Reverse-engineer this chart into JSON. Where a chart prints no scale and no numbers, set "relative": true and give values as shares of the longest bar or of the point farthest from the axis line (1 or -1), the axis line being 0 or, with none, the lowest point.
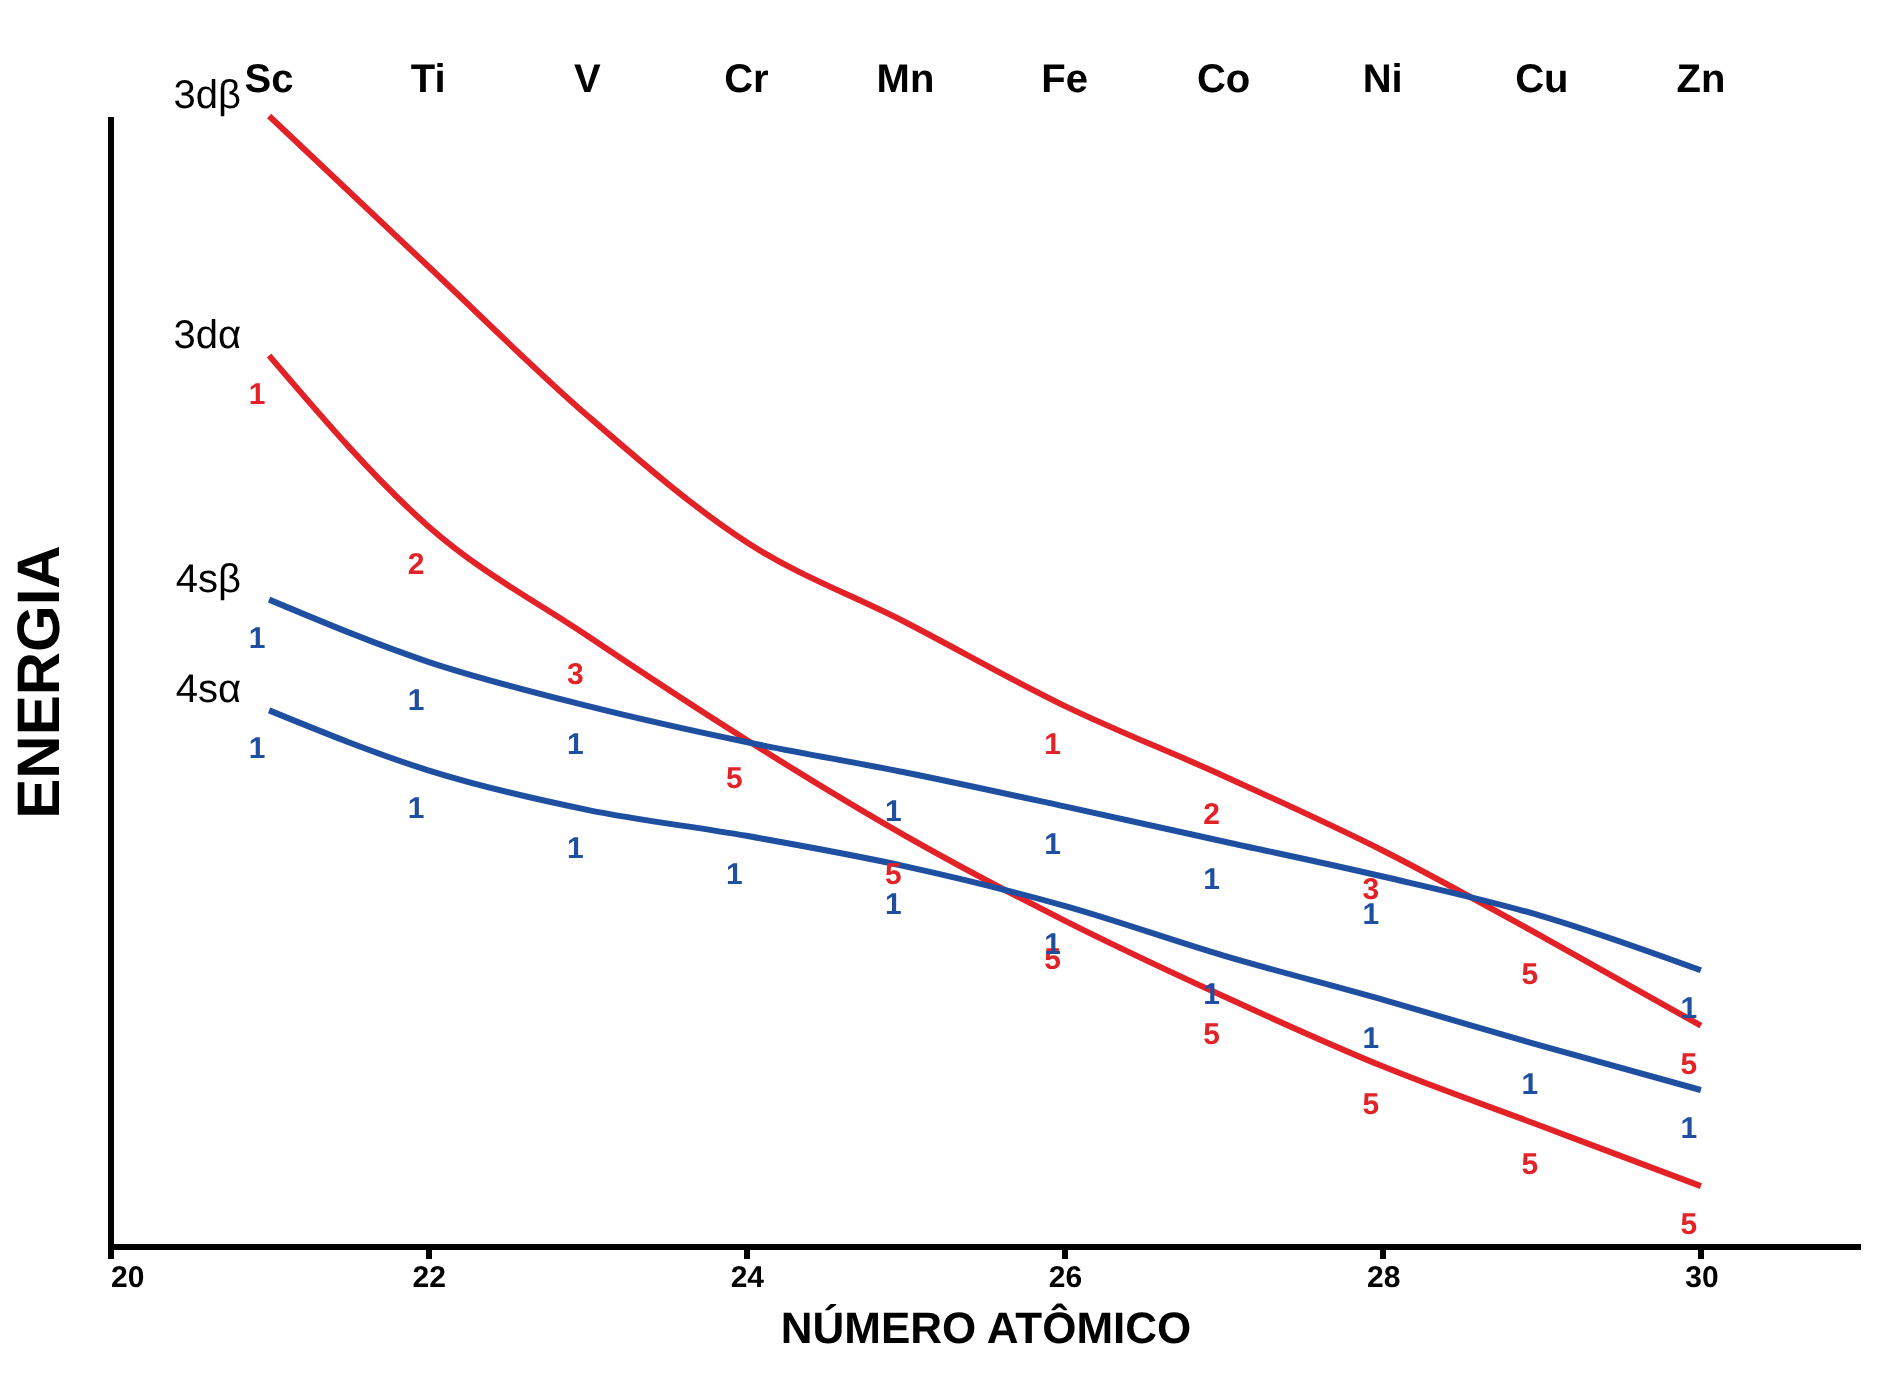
{
  "chart_data": {
    "type": "line",
    "relative": true,
    "xlabel": "NÚMERO ATÔMICO",
    "ylabel": "ENERGIA",
    "x": [
      21,
      22,
      23,
      24,
      25,
      26,
      27,
      28,
      29,
      30
    ],
    "xlim": [
      20,
      31
    ],
    "xticks": [
      20,
      22,
      24,
      26,
      28,
      30
    ],
    "grid": false,
    "legend": false,
    "marker": "none",
    "line_style": "solid",
    "series": [
      {
        "name": "3dβ",
        "color": "#e32228",
        "values": [
          1.0,
          0.867,
          0.735,
          0.623,
          0.552,
          0.478,
          0.416,
          0.35,
          0.274,
          0.195
        ]
      },
      {
        "name": "3dα",
        "color": "#e32228",
        "values": [
          0.788,
          0.637,
          0.54,
          0.448,
          0.363,
          0.288,
          0.221,
          0.159,
          0.106,
          0.053
        ]
      },
      {
        "name": "4sβ",
        "color": "#1f4fa0",
        "values": [
          0.572,
          0.517,
          0.478,
          0.446,
          0.419,
          0.389,
          0.358,
          0.327,
          0.292,
          0.244
        ]
      },
      {
        "name": "4sα",
        "color": "#1f4fa0",
        "values": [
          0.474,
          0.421,
          0.386,
          0.363,
          0.336,
          0.301,
          0.257,
          0.218,
          0.177,
          0.138
        ]
      }
    ],
    "annotations": [
      "Sc",
      "Ti",
      "V",
      "Cr",
      "Mn",
      "Fe",
      "Co",
      "Ni",
      "Cu",
      "Zn",
      {
        "text": "1",
        "x": 26,
        "y": 0.478
      },
      {
        "text": "2",
        "x": 27,
        "y": 0.416
      },
      {
        "text": "3",
        "x": 28,
        "y": 0.35
      },
      {
        "text": "5",
        "x": 29,
        "y": 0.274
      },
      {
        "text": "5",
        "x": 30,
        "y": 0.195
      },
      {
        "text": "1",
        "x": 21,
        "y": 0.788
      },
      {
        "text": "2",
        "x": 22,
        "y": 0.637
      },
      {
        "text": "3",
        "x": 23,
        "y": 0.54
      },
      {
        "text": "5",
        "x": 24,
        "y": 0.448
      },
      {
        "text": "5",
        "x": 25,
        "y": 0.363
      },
      {
        "text": "5",
        "x": 26,
        "y": 0.288
      },
      {
        "text": "5",
        "x": 27,
        "y": 0.221
      },
      {
        "text": "5",
        "x": 28,
        "y": 0.159
      },
      {
        "text": "5",
        "x": 29,
        "y": 0.106
      },
      {
        "text": "5",
        "x": 30,
        "y": 0.053
      },
      {
        "text": "1",
        "x": 21,
        "y": 0.572
      },
      {
        "text": "1",
        "x": 22,
        "y": 0.517
      },
      {
        "text": "1",
        "x": 23,
        "y": 0.478
      },
      {
        "text": "1",
        "x": 25,
        "y": 0.419
      },
      {
        "text": "1",
        "x": 26,
        "y": 0.389
      },
      {
        "text": "1",
        "x": 27,
        "y": 0.358
      },
      {
        "text": "1",
        "x": 28,
        "y": 0.327
      },
      {
        "text": "1",
        "x": 30,
        "y": 0.244
      },
      {
        "text": "1",
        "x": 21,
        "y": 0.474
      },
      {
        "text": "1",
        "x": 22,
        "y": 0.421
      },
      {
        "text": "1",
        "x": 23,
        "y": 0.386
      },
      {
        "text": "1",
        "x": 24,
        "y": 0.363
      },
      {
        "text": "1",
        "x": 25,
        "y": 0.336
      },
      {
        "text": "1",
        "x": 26,
        "y": 0.301
      },
      {
        "text": "1",
        "x": 27,
        "y": 0.257
      },
      {
        "text": "1",
        "x": 28,
        "y": 0.218
      },
      {
        "text": "1",
        "x": 29,
        "y": 0.177
      },
      {
        "text": "1",
        "x": 30,
        "y": 0.138
      }
    ]
  }
}
